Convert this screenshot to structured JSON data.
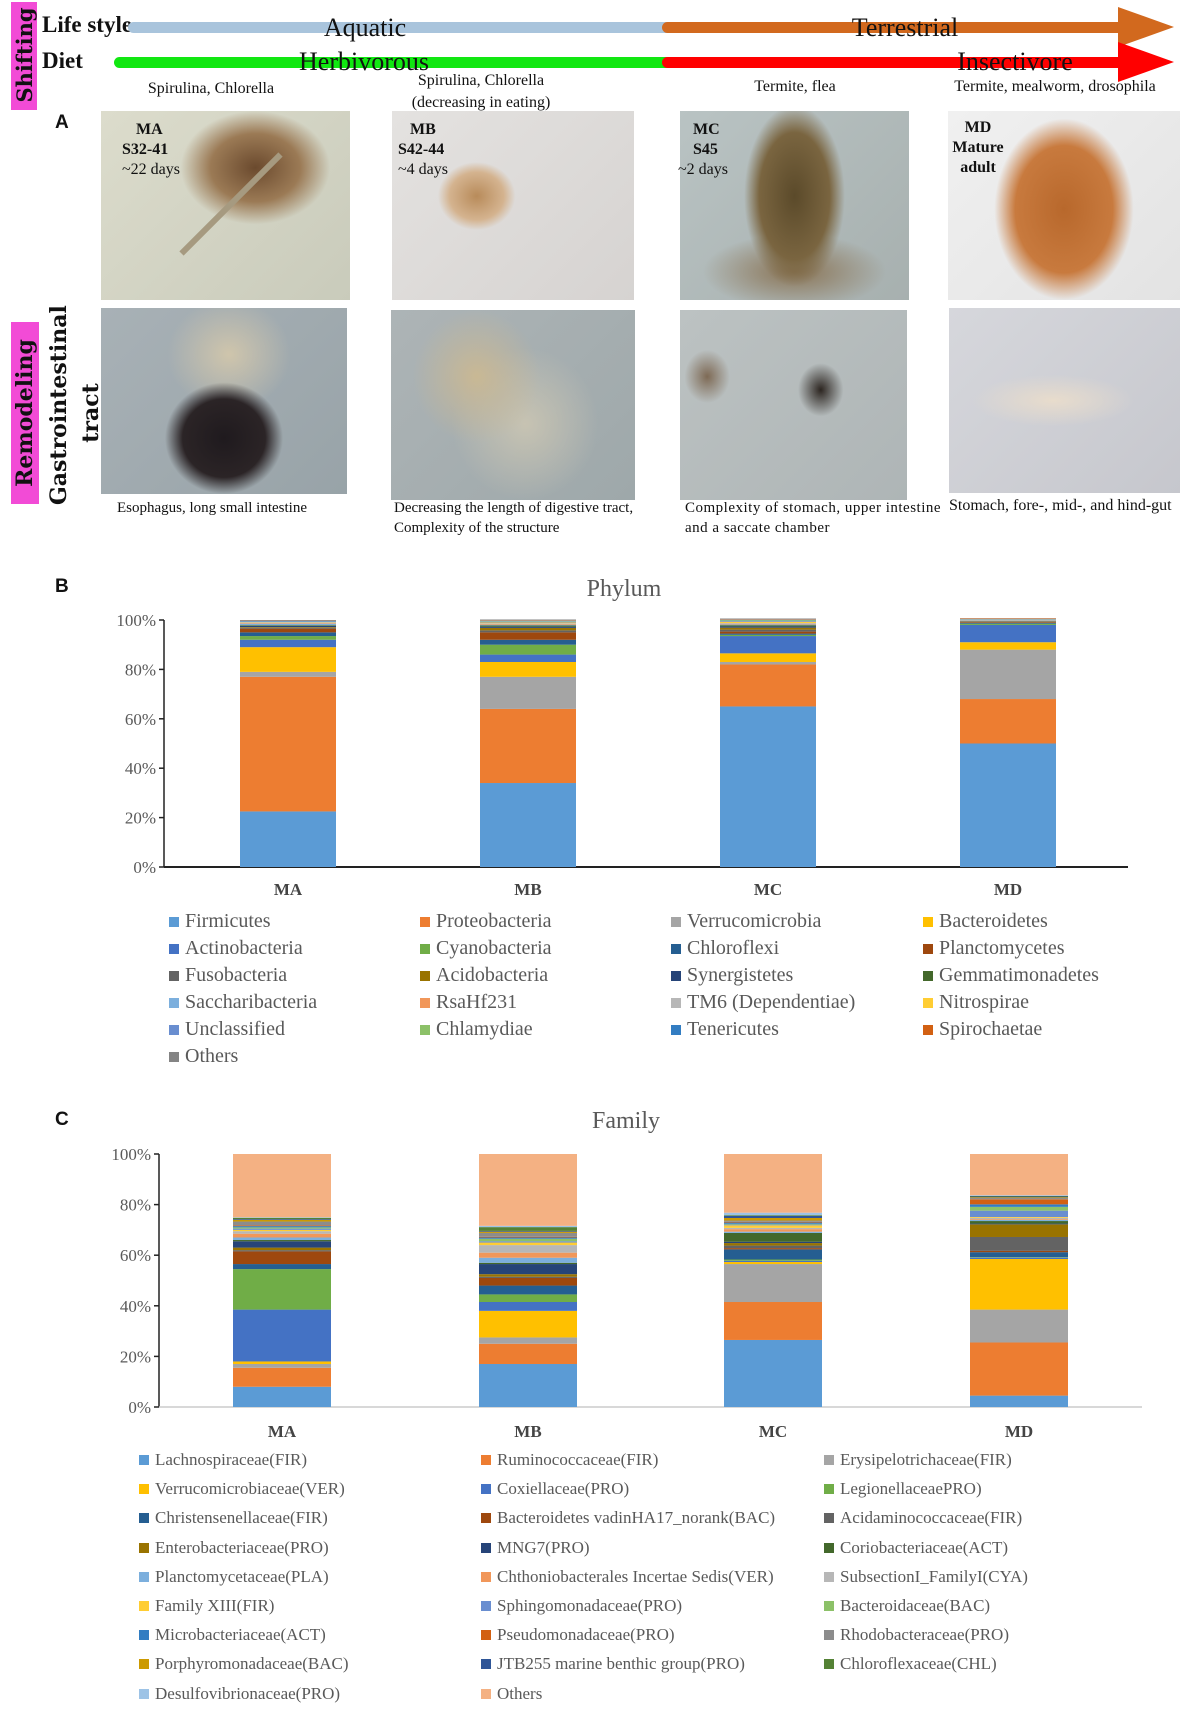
{
  "shifting": {
    "side_label": "Shifting",
    "lifestyle_label": "Life style",
    "diet_label": "Diet",
    "aquatic": "Aquatic",
    "terrestrial": "Terrestrial",
    "herbivorous": "Herbivorous",
    "insectivore": "Insectivore",
    "colors": {
      "aquatic": "#a9c4dc",
      "terrestrial": "#d2691e",
      "herbivorous": "#11e711",
      "insectivore": "#ff0000"
    },
    "foods": [
      "Spirulina, Chlorella",
      "Spirulina, Chlorella",
      "(decreasing in eating)",
      "Termite, flea",
      "Termite, mealworm, drosophila"
    ]
  },
  "panel_a": {
    "label": "A",
    "stages": [
      {
        "id": "MA",
        "stage": "S32-41",
        "duration": "~22 days"
      },
      {
        "id": "MB",
        "stage": "S42-44",
        "duration": "~4 days"
      },
      {
        "id": "MC",
        "stage": "S45",
        "duration": "~2 days"
      },
      {
        "id": "MD",
        "stage": "Mature",
        "duration": "adult"
      }
    ],
    "remodeling_label": "Remodeling",
    "gi_label_1": "Gastrointestinal",
    "gi_label_2": "tract",
    "captions": [
      "Esophagus, long small  intestine",
      "Decreasing the length of digestive tract, Complexity of the structure",
      "Complexity of stomach, upper intestine and a saccate chamber",
      "Stomach, fore-, mid-, and hind-gut"
    ]
  },
  "panel_b": {
    "label": "B"
  },
  "panel_c": {
    "label": "C"
  },
  "chart_data": [
    {
      "type": "bar",
      "stacked": true,
      "title": "Phylum",
      "categories": [
        "MA",
        "MB",
        "MC",
        "MD"
      ],
      "ylim": [
        0,
        100
      ],
      "yticks": [
        "0%",
        "20%",
        "40%",
        "60%",
        "80%",
        "100%"
      ],
      "legend_position": "bottom",
      "series": [
        {
          "name": "Firmicutes",
          "color": "#5B9BD5",
          "values": [
            22.5,
            34,
            65,
            50
          ]
        },
        {
          "name": "Proteobacteria",
          "color": "#ED7D31",
          "values": [
            54.5,
            30,
            17,
            18
          ]
        },
        {
          "name": "Verrucomicrobia",
          "color": "#A5A5A5",
          "values": [
            2,
            13,
            1,
            20
          ]
        },
        {
          "name": "Bacteroidetes",
          "color": "#FFC000",
          "values": [
            10,
            6,
            3.5,
            3
          ]
        },
        {
          "name": "Actinobacteria",
          "color": "#4472C4",
          "values": [
            3,
            3,
            7,
            7
          ]
        },
        {
          "name": "Cyanobacteria",
          "color": "#70AD47",
          "values": [
            1.5,
            4,
            0.5,
            0.5
          ]
        },
        {
          "name": "Chloroflexi",
          "color": "#255E91",
          "values": [
            1.5,
            2,
            0.5,
            0.3
          ]
        },
        {
          "name": "Planctomycetes",
          "color": "#9E480E",
          "values": [
            1.5,
            3,
            0.8,
            0.3
          ]
        },
        {
          "name": "Fusobacteria",
          "color": "#636363",
          "values": [
            0.3,
            0.8,
            0.8,
            0.2
          ]
        },
        {
          "name": "Acidobacteria",
          "color": "#997300",
          "values": [
            0.3,
            1,
            0.8,
            0.2
          ]
        },
        {
          "name": "Synergistetes",
          "color": "#264478",
          "values": [
            0.5,
            0.5,
            0.5,
            0.1
          ]
        },
        {
          "name": "Gemmatimonadetes",
          "color": "#43682B",
          "values": [
            0.3,
            0.5,
            0.5,
            0.1
          ]
        },
        {
          "name": "Saccharibacteria",
          "color": "#7CAFDD",
          "values": [
            0.5,
            0.3,
            0.3,
            0.1
          ]
        },
        {
          "name": "RsaHf231",
          "color": "#F1975A",
          "values": [
            0.2,
            0.3,
            0.3,
            0.1
          ]
        },
        {
          "name": "TM6 (Dependentiae)",
          "color": "#B7B7B7",
          "values": [
            0.3,
            0.3,
            0.3,
            0.1
          ]
        },
        {
          "name": "Nitrospirae",
          "color": "#FFCD33",
          "values": [
            0.2,
            0.3,
            0.5,
            0.1
          ]
        },
        {
          "name": "Unclassified",
          "color": "#698ED0",
          "values": [
            0.3,
            0.3,
            0.3,
            0.1
          ]
        },
        {
          "name": "Chlamydiae",
          "color": "#8CC168",
          "values": [
            0.1,
            0.2,
            0.3,
            0.1
          ]
        },
        {
          "name": "Tenericutes",
          "color": "#327DC2",
          "values": [
            0.1,
            0.2,
            0.2,
            0.1
          ]
        },
        {
          "name": "Spirochaetae",
          "color": "#D26012",
          "values": [
            0.1,
            0.2,
            0.2,
            0.2
          ]
        },
        {
          "name": "Others",
          "color": "#848484",
          "values": [
            0.3,
            0.3,
            0.3,
            0.1
          ]
        }
      ]
    },
    {
      "type": "bar",
      "stacked": true,
      "title": "Family",
      "categories": [
        "MA",
        "MB",
        "MC",
        "MD"
      ],
      "ylim": [
        0,
        100
      ],
      "yticks": [
        "0%",
        "20%",
        "40%",
        "60%",
        "80%",
        "100%"
      ],
      "legend_position": "bottom",
      "series": [
        {
          "name": "Lachnospiraceae(FIR)",
          "color": "#5B9BD5",
          "values": [
            8,
            17,
            26.5,
            4.5
          ]
        },
        {
          "name": "Ruminococcaceae(FIR)",
          "color": "#ED7D31",
          "values": [
            7.5,
            8,
            15,
            21
          ]
        },
        {
          "name": "Erysipelotrichaceae(FIR)",
          "color": "#A5A5A5",
          "values": [
            1.5,
            2.5,
            15,
            13
          ]
        },
        {
          "name": "Verrucomicrobiaceae(VER)",
          "color": "#FFC000",
          "values": [
            1,
            10.5,
            0.8,
            20
          ]
        },
        {
          "name": "Coxiellaceae(PRO)",
          "color": "#4472C4",
          "values": [
            20.5,
            3.5,
            0.5,
            0.5
          ]
        },
        {
          "name": "LegionellaceaePRO)",
          "color": "#70AD47",
          "values": [
            16,
            3,
            0.5,
            0.2
          ]
        },
        {
          "name": "Christensenellaceae(FIR)",
          "color": "#255E91",
          "values": [
            2,
            3.5,
            4,
            2
          ]
        },
        {
          "name": "Bacteroidetes vadinHA17_norank(BAC)",
          "color": "#9E480E",
          "values": [
            5,
            3,
            0.5,
            0.5
          ]
        },
        {
          "name": "Acidaminococcaceae(FIR)",
          "color": "#636363",
          "values": [
            0.5,
            0.5,
            1,
            5.5
          ]
        },
        {
          "name": "Enterobacteriaceae(PRO)",
          "color": "#997300",
          "values": [
            1,
            1,
            1,
            5
          ]
        },
        {
          "name": "MNG7(PRO)",
          "color": "#264478",
          "values": [
            2.5,
            4,
            0.5,
            0.3
          ]
        },
        {
          "name": "Coriobacteriaceae(ACT)",
          "color": "#43682B",
          "values": [
            0.5,
            0.5,
            3.5,
            1
          ]
        },
        {
          "name": "Planctomycetaceae(PLA)",
          "color": "#7CAFDD",
          "values": [
            1,
            2,
            0.5,
            0.5
          ]
        },
        {
          "name": "Chthoniobacterales Incertae Sedis(VER)",
          "color": "#F1975A",
          "values": [
            1.5,
            2,
            1,
            0.3
          ]
        },
        {
          "name": "SubsectionI_FamilyI(CYA)",
          "color": "#B7B7B7",
          "values": [
            1,
            3,
            0.5,
            0.5
          ]
        },
        {
          "name": "Family XIII(FIR)",
          "color": "#FFCD33",
          "values": [
            0.5,
            1,
            1,
            0.3
          ]
        },
        {
          "name": "Sphingomonadaceae(PRO)",
          "color": "#698ED0",
          "values": [
            0.5,
            0.5,
            0.3,
            2.5
          ]
        },
        {
          "name": "Bacteroidaceae(BAC)",
          "color": "#8CC168",
          "values": [
            0.5,
            1,
            0.3,
            1.5
          ]
        },
        {
          "name": "Microbacteriaceae(ACT)",
          "color": "#327DC2",
          "values": [
            0.5,
            0.5,
            0.5,
            1
          ]
        },
        {
          "name": "Pseudomonadaceae(PRO)",
          "color": "#D26012",
          "values": [
            0.3,
            0.3,
            0.3,
            2
          ]
        },
        {
          "name": "Rhodobacteraceae(PRO)",
          "color": "#8C8C8C",
          "values": [
            1.5,
            1.5,
            0.5,
            0.5
          ]
        },
        {
          "name": "Porphyromonadaceae(BAC)",
          "color": "#CC9A00",
          "values": [
            0.7,
            0.5,
            1,
            0.3
          ]
        },
        {
          "name": "JTB255 marine benthic group(PRO)",
          "color": "#2E5597",
          "values": [
            0.3,
            0.3,
            0.8,
            0.3
          ]
        },
        {
          "name": "Chloroflexaceae(CHL)",
          "color": "#548235",
          "values": [
            0.5,
            1.5,
            0.3,
            0.2
          ]
        },
        {
          "name": "Desulfovibrionaceae(PRO)",
          "color": "#9DC3E6",
          "values": [
            0.2,
            0.5,
            1,
            0.3
          ]
        },
        {
          "name": "Others",
          "color": "#F4B183",
          "values": [
            25,
            28.4,
            23.2,
            16.3
          ]
        }
      ]
    }
  ]
}
